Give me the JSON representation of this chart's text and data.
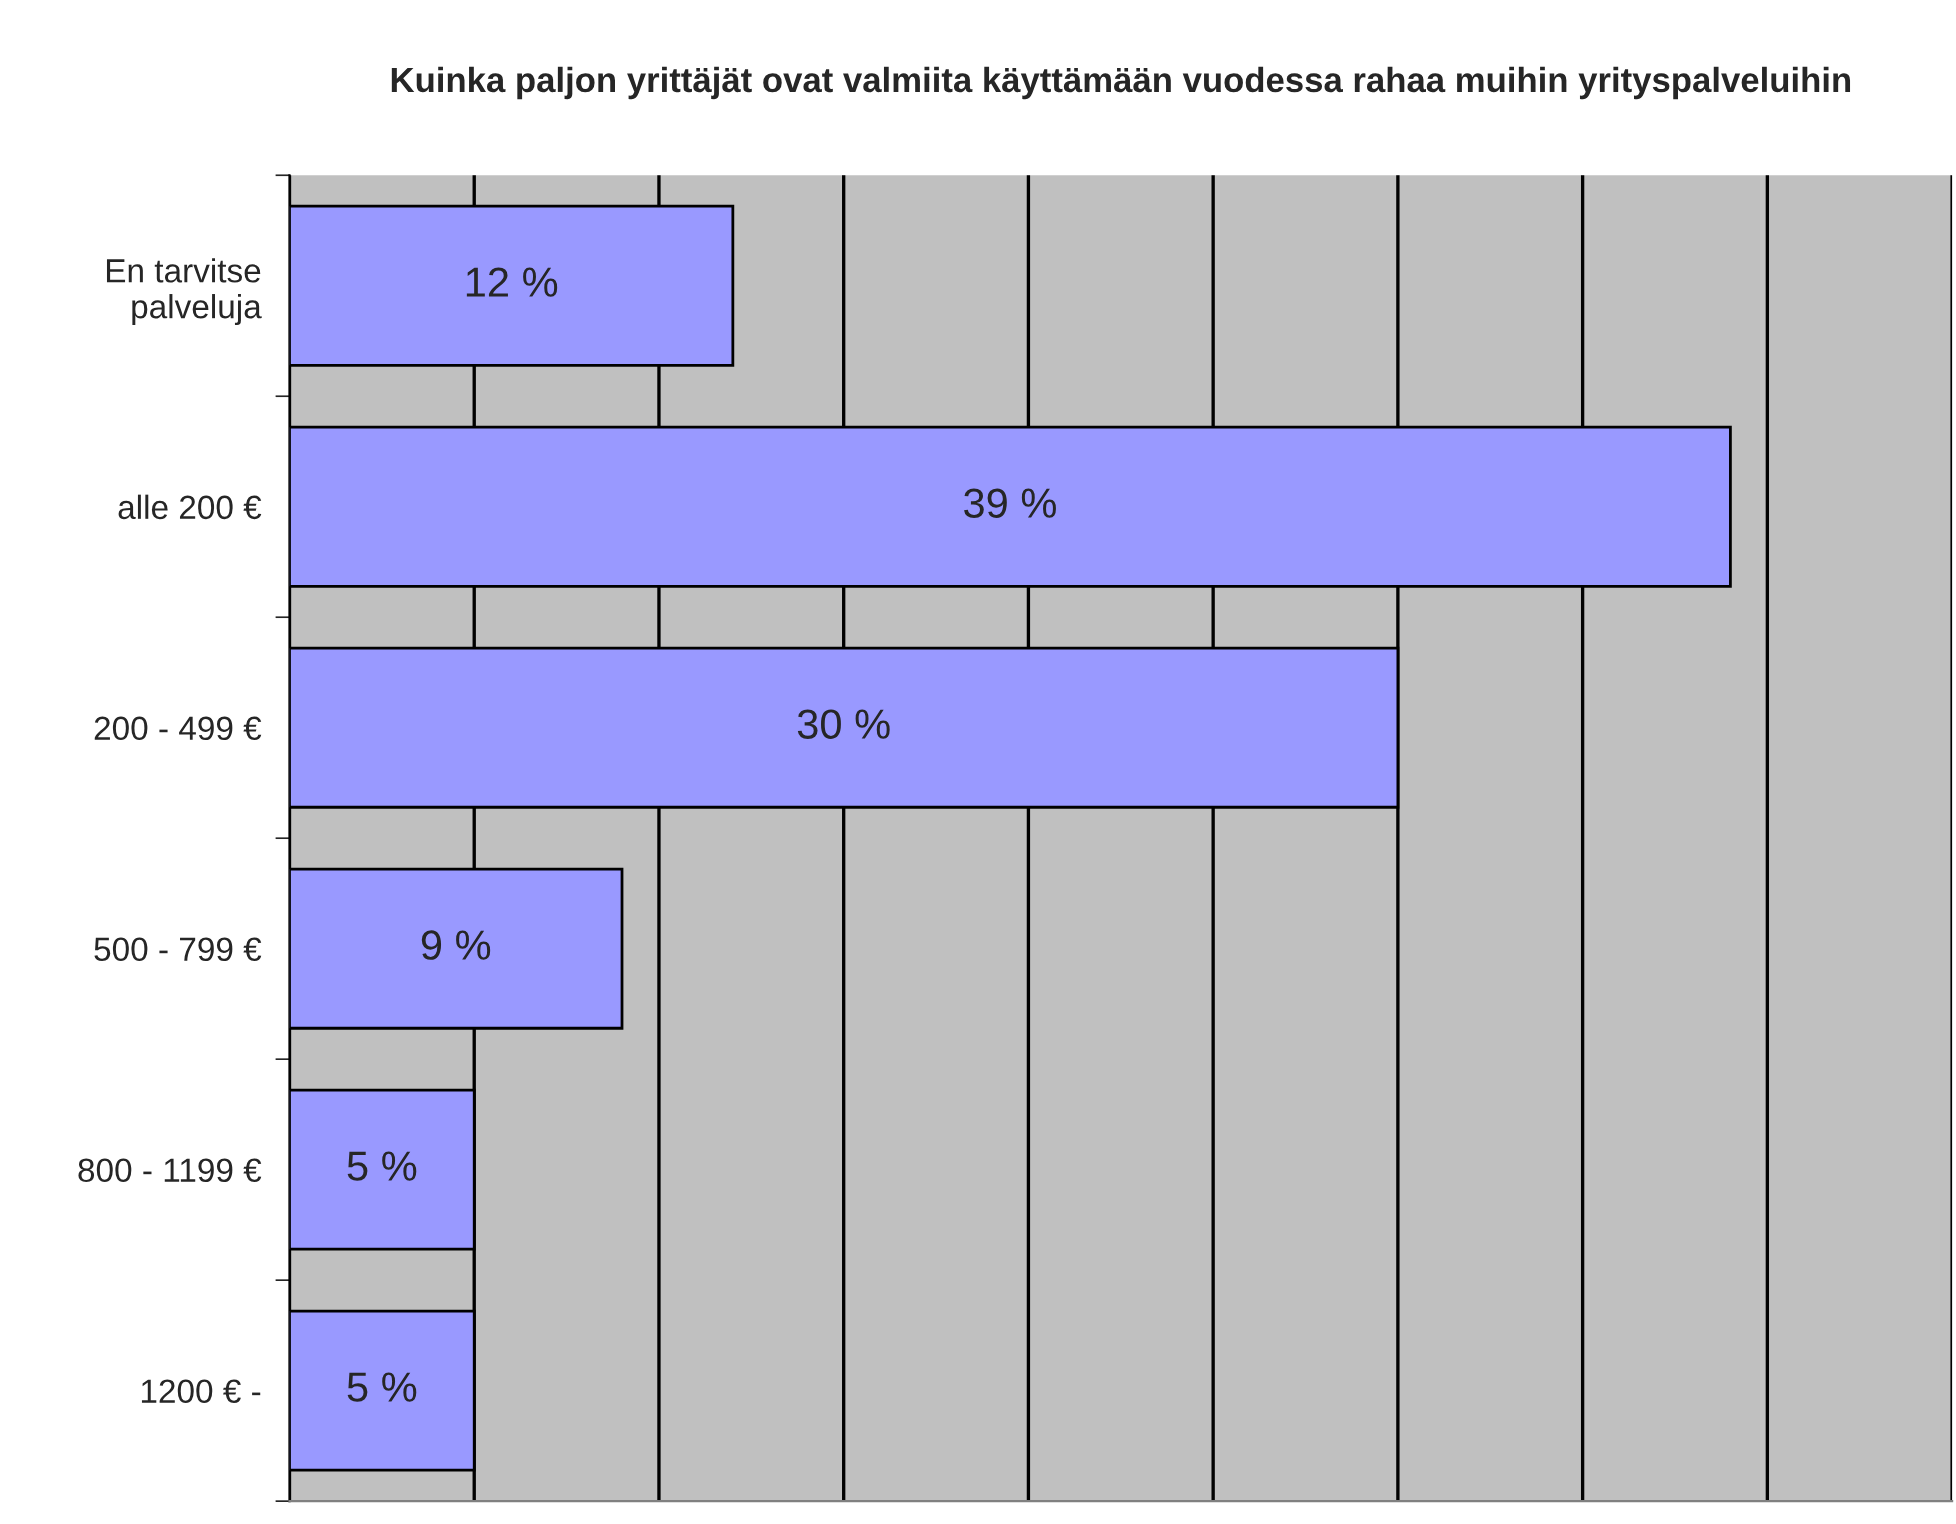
{
  "chart_data": {
    "type": "bar",
    "orientation": "horizontal",
    "title": "Kuinka paljon yrittäjät ovat valmiita käyttämään vuodessa rahaa muihin yrityspalveluihin",
    "categories": [
      "En tarvitse\npalveluja",
      "alle 200 €",
      "200 - 499 €",
      "500 - 799 €",
      "800 - 1199 €",
      "1200 € -"
    ],
    "values": [
      12,
      39,
      30,
      9,
      5,
      5
    ],
    "value_labels": [
      "12 %",
      "39 %",
      "30 %",
      "9 %",
      "5 %",
      "5 %"
    ],
    "color": "#9999ff",
    "xlim": [
      0,
      45
    ],
    "xticks": [
      {
        "value": 0,
        "label": null
      },
      {
        "value": 5,
        "label": null
      },
      {
        "value": 10,
        "label": null
      },
      {
        "value": 15,
        "label": null
      },
      {
        "value": 20,
        "label": null
      },
      {
        "value": 25,
        "label": null
      },
      {
        "value": 30,
        "label": null
      },
      {
        "value": 35,
        "label": null
      },
      {
        "value": 40,
        "label": null
      },
      {
        "value": 45,
        "label": null
      }
    ],
    "grid": "x",
    "tick_labels": "y"
  }
}
